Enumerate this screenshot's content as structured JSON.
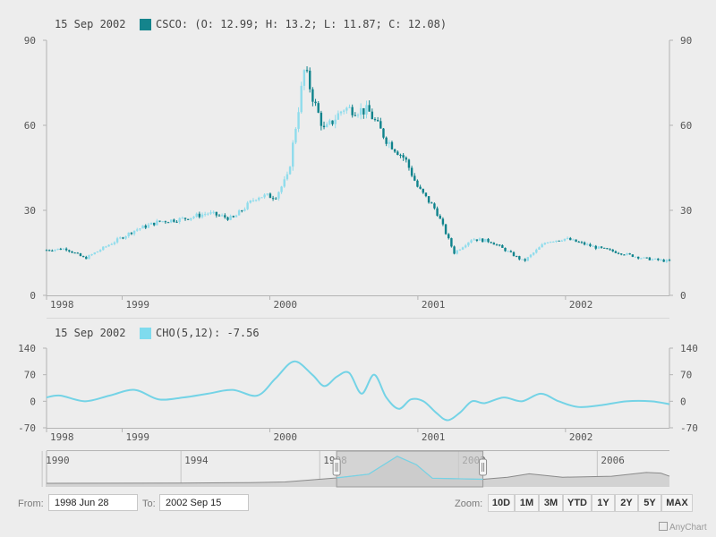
{
  "chart_data": [
    {
      "type": "candlestick",
      "series_name": "CSCO",
      "legend": {
        "date": "15 Sep 2002",
        "name": "CSCO",
        "open": 12.99,
        "high": 13.2,
        "low": 11.87,
        "close": 12.08
      },
      "ylim": [
        0,
        90
      ],
      "yticks": [
        "0",
        "30",
        "60",
        "90"
      ],
      "xticks": [
        "1998",
        "1999",
        "2000",
        "2001",
        "2002"
      ],
      "x_range": [
        "1998-06-28",
        "2002-09-15"
      ],
      "close_path": [
        [
          "1998-06-28",
          16
        ],
        [
          "1998-08-15",
          16.5
        ],
        [
          "1998-10-01",
          13
        ],
        [
          "1998-12-01",
          18
        ],
        [
          "1999-02-01",
          23
        ],
        [
          "1999-04-01",
          26
        ],
        [
          "1999-06-01",
          27
        ],
        [
          "1999-08-01",
          29
        ],
        [
          "1999-10-01",
          27
        ],
        [
          "1999-12-01",
          35
        ],
        [
          "2000-01-15",
          35
        ],
        [
          "2000-02-15",
          42
        ],
        [
          "2000-03-27",
          80
        ],
        [
          "2000-04-20",
          68
        ],
        [
          "2000-05-15",
          58
        ],
        [
          "2000-07-01",
          66
        ],
        [
          "2000-09-01",
          65
        ],
        [
          "2000-10-15",
          55
        ],
        [
          "2000-12-01",
          48
        ],
        [
          "2001-01-01",
          38
        ],
        [
          "2001-02-15",
          30
        ],
        [
          "2001-04-01",
          15
        ],
        [
          "2001-05-15",
          20
        ],
        [
          "2001-07-01",
          19
        ],
        [
          "2001-09-20",
          12
        ],
        [
          "2001-11-15",
          19
        ],
        [
          "2002-01-01",
          20
        ],
        [
          "2002-03-15",
          17
        ],
        [
          "2002-05-15",
          15
        ],
        [
          "2002-07-15",
          13
        ],
        [
          "2002-09-15",
          12
        ]
      ]
    },
    {
      "type": "line",
      "series_name": "CHO(5,12)",
      "legend": {
        "date": "15 Sep 2002",
        "label": "CHO(5,12)",
        "value": -7.56
      },
      "ylim": [
        -70,
        140
      ],
      "yticks": [
        "-70",
        "0",
        "70",
        "140"
      ],
      "xticks": [
        "1998",
        "1999",
        "2000",
        "2001",
        "2002"
      ],
      "x": [
        "1998-06-28",
        "1998-08-01",
        "1998-10-01",
        "1998-12-01",
        "1999-02-01",
        "1999-04-01",
        "1999-06-01",
        "1999-08-01",
        "1999-10-01",
        "1999-12-01",
        "2000-01-15",
        "2000-03-01",
        "2000-04-15",
        "2000-05-15",
        "2000-06-15",
        "2000-07-15",
        "2000-08-15",
        "2000-09-15",
        "2000-10-15",
        "2000-11-15",
        "2000-12-15",
        "2001-01-15",
        "2001-02-15",
        "2001-03-15",
        "2001-04-15",
        "2001-05-15",
        "2001-06-15",
        "2001-08-01",
        "2001-09-15",
        "2001-11-01",
        "2001-12-15",
        "2002-02-01",
        "2002-04-01",
        "2002-06-01",
        "2002-08-01",
        "2002-09-15"
      ],
      "values": [
        10,
        15,
        0,
        15,
        30,
        5,
        10,
        20,
        30,
        15,
        60,
        105,
        70,
        40,
        65,
        75,
        20,
        70,
        10,
        -20,
        5,
        0,
        -30,
        -50,
        -30,
        0,
        -5,
        10,
        0,
        20,
        0,
        -15,
        -10,
        0,
        0,
        -7.56
      ]
    },
    {
      "type": "area",
      "role": "navigator",
      "xticks": [
        "1990",
        "1994",
        "1998",
        "2002",
        "2006"
      ],
      "x_range": [
        "1990-02-16",
        "2008-01-31"
      ],
      "selection": [
        "1998-06-28",
        "2002-09-15"
      ],
      "close_path": [
        [
          "1990-02-16",
          0.1
        ],
        [
          "1994-01-01",
          0.5
        ],
        [
          "1996-01-01",
          2
        ],
        [
          "1997-01-01",
          4
        ],
        [
          "1998-06-28",
          16
        ],
        [
          "1999-06-01",
          27
        ],
        [
          "2000-03-27",
          80
        ],
        [
          "2000-10-15",
          55
        ],
        [
          "2001-04-01",
          15
        ],
        [
          "2002-09-15",
          12
        ],
        [
          "2003-06-01",
          18
        ],
        [
          "2004-01-15",
          28
        ],
        [
          "2005-01-01",
          18
        ],
        [
          "2006-06-01",
          21
        ],
        [
          "2007-06-01",
          32
        ],
        [
          "2007-11-01",
          30
        ],
        [
          "2008-01-31",
          21
        ]
      ]
    }
  ],
  "range_selector": {
    "from_label": "From:",
    "from_value": "1998 Jun 28",
    "to_label": "To:",
    "to_value": "2002 Sep 15"
  },
  "zoom": {
    "label": "Zoom:",
    "buttons": [
      "10D",
      "1M",
      "3M",
      "YTD",
      "1Y",
      "2Y",
      "5Y",
      "MAX"
    ]
  },
  "credits": "AnyChart",
  "colors": {
    "up": "#8fdcec",
    "down": "#0f838c",
    "line": "#74d3e6",
    "legend_main": "#14848c",
    "legend_ind": "#7fdbee",
    "nav_fill": "#d2d2d2",
    "nav_line": "#8a8a8a"
  }
}
